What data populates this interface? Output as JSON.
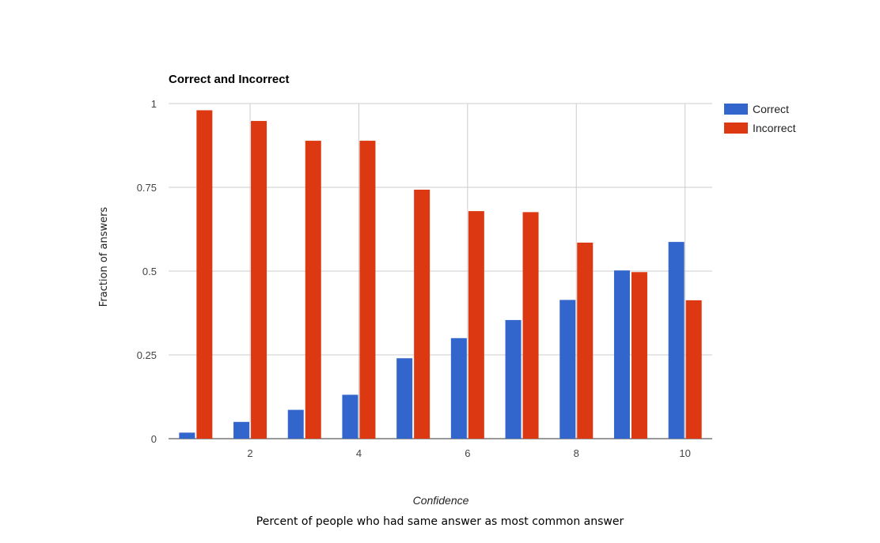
{
  "chart_data": {
    "type": "bar",
    "title": "Correct and Incorrect",
    "xlabel": "Confidence",
    "ylabel": "Fraction of answers",
    "caption": "Percent of people who had same answer as most common answer",
    "x": [
      1,
      2,
      3,
      4,
      5,
      6,
      7,
      8,
      9,
      10
    ],
    "x_ticks": [
      2,
      4,
      6,
      8,
      10
    ],
    "y_ticks": [
      0,
      0.25,
      0.5,
      0.75,
      1
    ],
    "y_tick_labels": [
      "0",
      "0.25",
      "0.5",
      "0.75",
      "1"
    ],
    "ylim": [
      0,
      1
    ],
    "grid": true,
    "legend_position": "right",
    "series": [
      {
        "name": "Correct",
        "color": "#3366cc",
        "values": [
          0.018,
          0.05,
          0.086,
          0.131,
          0.24,
          0.3,
          0.354,
          0.414,
          0.502,
          0.587
        ]
      },
      {
        "name": "Incorrect",
        "color": "#dc3912",
        "values": [
          0.98,
          0.948,
          0.889,
          0.889,
          0.743,
          0.679,
          0.676,
          0.585,
          0.497,
          0.413
        ]
      }
    ]
  }
}
